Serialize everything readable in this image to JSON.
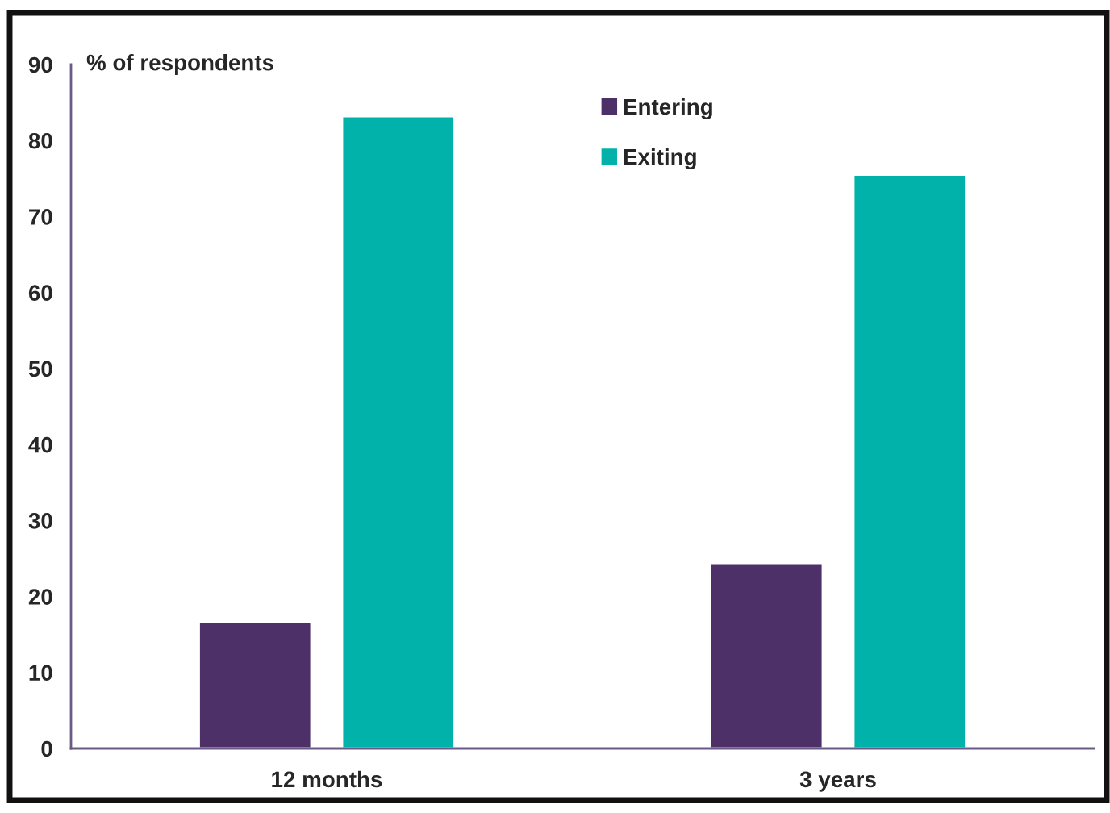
{
  "chart_data": {
    "type": "bar",
    "ylabel": "% of respondents",
    "categories": [
      "12 months",
      "3 years"
    ],
    "series": [
      {
        "name": "Entering",
        "color": "#4d3068",
        "values": [
          16.6,
          24.4
        ]
      },
      {
        "name": "Exiting",
        "color": "#00b2aa",
        "values": [
          83.2,
          75.5
        ]
      }
    ],
    "ylim": [
      0,
      90
    ],
    "yticks": [
      0,
      10,
      20,
      30,
      40,
      50,
      60,
      70,
      80,
      90
    ],
    "grid": false,
    "legend": "top right"
  }
}
